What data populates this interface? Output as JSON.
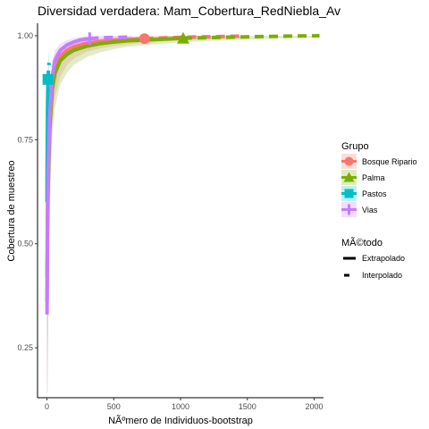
{
  "chart_data": {
    "type": "line",
    "title": "Diversidad verdadera: Mam_Cobertura_RedNiebla_Av",
    "xlabel": "NÃºmero de Individuos-bootstrap",
    "ylabel": "Cobertura de muestreo",
    "xlim": [
      -70,
      2070
    ],
    "ylim": [
      0.13,
      1.03
    ],
    "x_ticks": [
      "0",
      "500",
      "1000",
      "1500",
      "2000"
    ],
    "y_ticks": [
      "0.25",
      "0.50",
      "0.75",
      "1.00"
    ],
    "x_tick_values": [
      0,
      500,
      1000,
      1500,
      2000
    ],
    "y_tick_values": [
      0.25,
      0.5,
      0.75,
      1.0
    ],
    "grid": false,
    "legend_position": "right",
    "legend": {
      "group_title": "Grupo",
      "method_title": "MÃ©todo",
      "methods": [
        "Extrapolado",
        "Interpolado"
      ]
    },
    "series": [
      {
        "name": "Bosque Ripario",
        "color": "#F8766D",
        "marker": "circle",
        "observed": [
          730,
          0.993
        ],
        "interpolated": [
          [
            1,
            0.42
          ],
          [
            5,
            0.6
          ],
          [
            10,
            0.7
          ],
          [
            20,
            0.8
          ],
          [
            40,
            0.89
          ],
          [
            60,
            0.925
          ],
          [
            100,
            0.95
          ],
          [
            150,
            0.965
          ],
          [
            200,
            0.973
          ],
          [
            300,
            0.982
          ],
          [
            400,
            0.986
          ],
          [
            500,
            0.989
          ],
          [
            600,
            0.991
          ],
          [
            730,
            0.993
          ]
        ],
        "extrapolated": [
          [
            730,
            0.993
          ],
          [
            900,
            0.995
          ],
          [
            1100,
            0.997
          ],
          [
            1300,
            0.998
          ],
          [
            1460,
            0.999
          ]
        ]
      },
      {
        "name": "Palma",
        "color": "#7CAE00",
        "marker": "triangle",
        "observed": [
          1020,
          0.994
        ],
        "interpolated": [
          [
            1,
            0.36
          ],
          [
            5,
            0.55
          ],
          [
            10,
            0.65
          ],
          [
            20,
            0.77
          ],
          [
            40,
            0.87
          ],
          [
            60,
            0.91
          ],
          [
            100,
            0.94
          ],
          [
            150,
            0.955
          ],
          [
            200,
            0.965
          ],
          [
            300,
            0.975
          ],
          [
            400,
            0.981
          ],
          [
            500,
            0.985
          ],
          [
            600,
            0.988
          ],
          [
            800,
            0.991
          ],
          [
            1020,
            0.994
          ]
        ],
        "extrapolated": [
          [
            1020,
            0.994
          ],
          [
            1300,
            0.996
          ],
          [
            1600,
            0.998
          ],
          [
            1800,
            0.999
          ],
          [
            2040,
            1.0
          ]
        ]
      },
      {
        "name": "Pastos",
        "color": "#00BFC4",
        "marker": "square",
        "observed": [
          8,
          0.895
        ],
        "interpolated": [
          [
            1,
            0.6
          ],
          [
            3,
            0.75
          ],
          [
            5,
            0.83
          ],
          [
            8,
            0.895
          ]
        ],
        "extrapolated": [
          [
            8,
            0.895
          ],
          [
            12,
            0.92
          ],
          [
            16,
            0.935
          ]
        ]
      },
      {
        "name": "Vias",
        "color": "#C77CFF",
        "marker": "cross",
        "observed": [
          320,
          0.993
        ],
        "interpolated": [
          [
            1,
            0.33
          ],
          [
            5,
            0.55
          ],
          [
            10,
            0.68
          ],
          [
            20,
            0.8
          ],
          [
            40,
            0.9
          ],
          [
            60,
            0.94
          ],
          [
            100,
            0.965
          ],
          [
            150,
            0.978
          ],
          [
            200,
            0.985
          ],
          [
            250,
            0.99
          ],
          [
            320,
            0.993
          ]
        ],
        "extrapolated": [
          [
            320,
            0.993
          ],
          [
            400,
            0.995
          ],
          [
            500,
            0.996
          ],
          [
            640,
            0.997
          ]
        ]
      }
    ]
  }
}
